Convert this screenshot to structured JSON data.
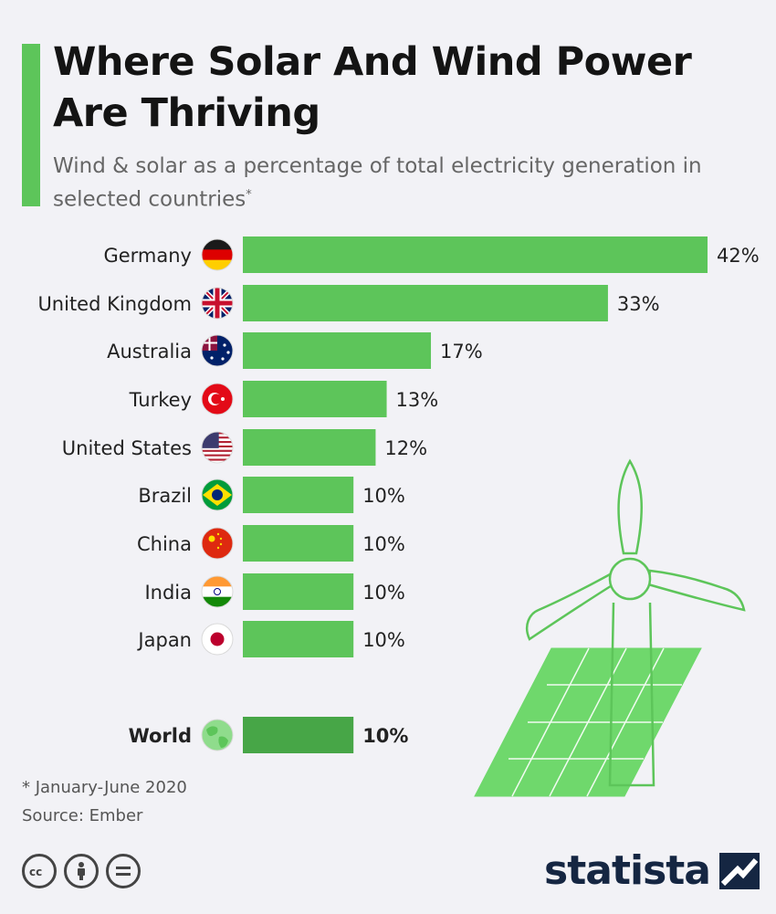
{
  "header": {
    "title": "Where Solar And Wind Power Are Thriving",
    "subtitle": "Wind & solar as a percentage of total electricity generation in selected countries",
    "subtitle_mark": "*"
  },
  "chart_data": {
    "type": "bar",
    "orientation": "horizontal",
    "categories": [
      "Germany",
      "United Kingdom",
      "Australia",
      "Turkey",
      "United States",
      "Brazil",
      "China",
      "India",
      "Japan",
      "World"
    ],
    "values": [
      42,
      33,
      17,
      13,
      12,
      10,
      10,
      10,
      10,
      10
    ],
    "value_labels": [
      "42%",
      "33%",
      "17%",
      "13%",
      "12%",
      "10%",
      "10%",
      "10%",
      "10%",
      "10%"
    ],
    "highlight": "World",
    "xlim": [
      0,
      42
    ],
    "grid": false,
    "colors": {
      "bar": "#5dc55a",
      "highlight_bar": "#47a647"
    }
  },
  "footer": {
    "note": "* January-June 2020",
    "source": "Source: Ember",
    "brand": "statista",
    "license_icons": [
      "cc",
      "by",
      "nd"
    ]
  }
}
